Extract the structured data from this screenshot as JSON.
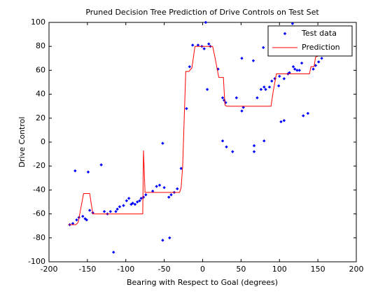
{
  "chart_data": {
    "type": "scatter",
    "title": "Pruned Decision Tree Prediction of Drive Controls on Test Set",
    "x_label": "Bearing with Respect to Goal (degrees)",
    "y_label": "Drive Control",
    "xlim": [
      -200,
      200
    ],
    "xticks": [
      -200,
      -150,
      -100,
      -50,
      0,
      50,
      100,
      150,
      200
    ],
    "ylim": [
      -100,
      100
    ],
    "yticks": [
      -100,
      -80,
      -60,
      -40,
      -20,
      0,
      20,
      40,
      60,
      80,
      100
    ],
    "grid": false,
    "legend": "northeast",
    "series": [
      {
        "name": "Test data",
        "color": "#0000ff",
        "style": "markers",
        "x": [
          -173,
          -169,
          -166,
          -164,
          -161,
          -156,
          -153,
          -151,
          -149,
          -147,
          -143,
          -132,
          -128,
          -124,
          -120,
          -116,
          -113,
          -111,
          -108,
          -103,
          -99,
          -96,
          -93,
          -91,
          -88,
          -85,
          -82,
          -80,
          -77,
          -74,
          -65,
          -60,
          -56,
          -52,
          -52,
          -50,
          -44,
          -43,
          -41,
          -37,
          -33,
          -28,
          -21,
          -17,
          -13,
          -6,
          -1,
          2,
          4,
          6,
          8,
          10,
          20,
          26,
          28,
          30,
          26,
          31,
          39,
          44,
          51,
          53,
          51,
          66,
          67,
          67,
          71,
          80,
          76,
          79,
          80,
          82,
          87,
          90,
          94,
          99,
          100,
          102,
          106,
          106,
          111,
          113,
          117,
          118,
          120,
          123,
          126,
          129,
          131,
          137,
          144,
          147,
          151,
          155
        ],
        "values": [
          -69,
          -68,
          -24,
          -65,
          -63,
          -62,
          -64,
          -65,
          -25,
          -57,
          -59,
          -19,
          -58,
          -60,
          -58,
          -92,
          -58,
          -56,
          -54,
          -53,
          -49,
          -47,
          -52,
          -51,
          -52,
          -50,
          -49,
          -47,
          -46,
          -44,
          -41,
          -37,
          -36,
          -1,
          -82,
          -38,
          -46,
          -80,
          -44,
          -42,
          -39,
          -22,
          28,
          63,
          81,
          81,
          80,
          78,
          100,
          44,
          82,
          80,
          61,
          37,
          35,
          33,
          1,
          -4,
          -8,
          37,
          26,
          29,
          70,
          68,
          -3,
          -8,
          37,
          1,
          44,
          79,
          46,
          44,
          46,
          51,
          53,
          47,
          55,
          17,
          18,
          53,
          57,
          58,
          99,
          63,
          61,
          60,
          60,
          66,
          22,
          24,
          61,
          64,
          67,
          70
        ]
      },
      {
        "name": "Prediction",
        "color": "#ff0000",
        "style": "line",
        "x": [
          -175,
          -165,
          -162,
          -155,
          -147,
          -143,
          -78,
          -77,
          -75,
          -30,
          -28,
          -26,
          -22,
          -18,
          -14,
          -10,
          13,
          16,
          21,
          27,
          29,
          31,
          89,
          92,
          96,
          139,
          141,
          145,
          147,
          158
        ],
        "values": [
          -69,
          -69,
          -67,
          -43,
          -43,
          -60,
          -60,
          -7,
          -42,
          -42,
          -38,
          -20,
          59,
          59,
          62,
          80,
          80,
          71,
          54,
          54,
          31,
          30,
          30,
          43,
          57,
          57,
          63,
          63,
          71,
          74
        ]
      }
    ]
  }
}
